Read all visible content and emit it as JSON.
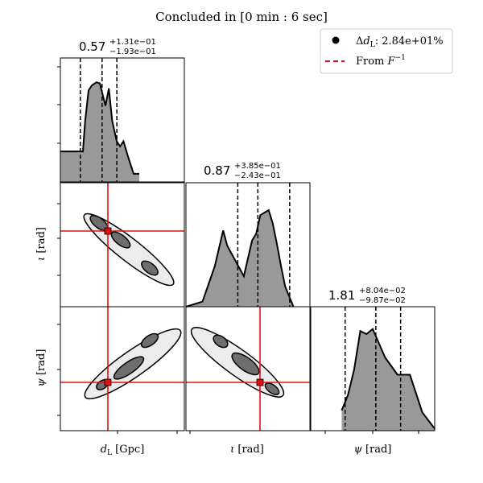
{
  "title": "Concluded in [0 min : 6 sec]",
  "legend": {
    "items": [
      {
        "label": "Δd_L: 2.84e+01%",
        "marker": "dot",
        "color": "#000000"
      },
      {
        "label": "From F^{-1}",
        "marker": "dashed-line",
        "color": "#e01010"
      }
    ]
  },
  "colors": {
    "hist_fill": "#999999",
    "contour_dark": "#6e6e6e",
    "contour_light": "#ececec",
    "truth": "#e01010"
  },
  "chart_data": {
    "type": "corner",
    "parameters": [
      {
        "key": "dL",
        "label": "d_L [Gpc]",
        "median": "0.57",
        "upper": "+1.31e−01",
        "lower": "−1.93e−01"
      },
      {
        "key": "iota",
        "label": "ι [rad]",
        "median": "0.87",
        "upper": "+3.85e−01",
        "lower": "−2.43e−01"
      },
      {
        "key": "psi",
        "label": "ψ [rad]",
        "median": "1.81",
        "upper": "+8.04e−02",
        "lower": "−9.87e−02"
      }
    ],
    "truth": {
      "dL": 0.55,
      "iota": 0.98,
      "psi": 1.73
    },
    "histograms": [
      {
        "param": "dL",
        "xrange": [
          0.2,
          1.3
        ],
        "quantiles": [
          0.377,
          0.57,
          0.701
        ],
        "x": [
          0.2,
          0.4,
          0.42,
          0.45,
          0.48,
          0.52,
          0.55,
          0.6,
          0.63,
          0.66,
          0.7,
          0.73,
          0.76,
          0.8,
          0.85,
          0.9
        ],
        "y": [
          0.3,
          0.3,
          0.6,
          0.9,
          0.95,
          0.98,
          0.97,
          0.75,
          0.92,
          0.6,
          0.4,
          0.35,
          0.4,
          0.25,
          0.08,
          0.08
        ]
      },
      {
        "param": "iota",
        "xrange": [
          0.0,
          1.5
        ],
        "quantiles": [
          0.627,
          0.87,
          1.255
        ],
        "x": [
          0.0,
          0.2,
          0.35,
          0.45,
          0.5,
          0.6,
          0.7,
          0.8,
          0.85,
          0.9,
          1.0,
          1.05,
          1.1,
          1.15,
          1.2,
          1.3
        ],
        "y": [
          0.0,
          0.05,
          0.4,
          0.75,
          0.6,
          0.45,
          0.3,
          0.65,
          0.72,
          0.9,
          0.95,
          0.82,
          0.62,
          0.4,
          0.2,
          0.0
        ]
      },
      {
        "param": "psi",
        "xrange": [
          1.6,
          2.0
        ],
        "quantiles": [
          1.711,
          1.81,
          1.89
        ],
        "x": [
          1.7,
          1.72,
          1.74,
          1.76,
          1.78,
          1.8,
          1.84,
          1.88,
          1.92,
          1.96,
          2.0
        ],
        "y": [
          0.2,
          0.35,
          0.6,
          0.98,
          0.95,
          1.0,
          0.72,
          0.55,
          0.55,
          0.18,
          0.02
        ]
      }
    ],
    "axis_ticks": {
      "x_param_dL": [
        "Gpc"
      ],
      "grid": false
    }
  }
}
